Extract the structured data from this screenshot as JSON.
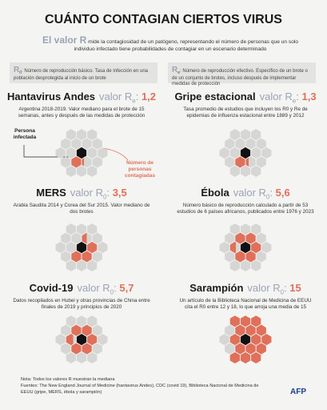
{
  "title": "CUÁNTO CONTAGIAN CIERTOS VIRUS",
  "intro": {
    "term": "El valor R",
    "text": "mide la contagiosidad de un patógeno, representando el número de personas que un solo individuo infectado tiene probabilidades de contagiar en un escenario determinado"
  },
  "separator": ":",
  "definitions": [
    {
      "symbol": "R",
      "sub": "0",
      "text": "Número de reproducción básico. Tasa de infección en una población desprotegida al inicio de un brote"
    },
    {
      "symbol": "R",
      "sub": "e",
      "text": "Número de reproducción efectivo. Específico de un brote o de un conjunto de brotes, incluso después de implementar medidas de protección"
    }
  ],
  "annotations": {
    "infected": "Persona infectada",
    "contagiados": "Número de personas contagiadas"
  },
  "chart_data": {
    "type": "hexagon-grid",
    "value_prefix": "valor R",
    "categories": [
      "Hantavirus Andes",
      "Gripe estacional",
      "MERS",
      "Ébola",
      "Covid-19",
      "Sarampión"
    ],
    "r_types": [
      "e",
      "e",
      "0",
      "0",
      "0",
      "0"
    ],
    "values": [
      1.2,
      1.3,
      3.5,
      5.6,
      5.7,
      15
    ],
    "value_labels": [
      "1,2",
      "1,3",
      "3,5",
      "5,6",
      "5,7",
      "15"
    ],
    "descriptions": [
      "Argentina 2018-2019. Valor mediano para el brote de 15 semanas, antes y después de las medidas de protección",
      "Tasa promedio de estudios que incluyen los R0 y Re de epidemias de influenza estacional entre 1889 y 2012",
      "Arabia Saudita 2014 y Corea del Sur 2015. Valor mediano de dos brotes",
      "Número básico de reproducción calculado a partir de 53 estudios de 6 países africanos, publicados entre 1976 y 2023",
      "Datos recopilados en Hubei y otras provincias de China entre finales de 2019 y principios de 2020",
      "Un artículo de la Biblioteca Nacional de Medicina de EEUU cita el R0 entre 12 y 18, lo que arroja una media de 15"
    ],
    "color": "#e0705a",
    "infected_color": "#111111",
    "empty_color": "#d6d6d4"
  },
  "footer": {
    "note": "Nota: Todos los valores R muestran la mediana",
    "sources": "Fuentes: The New England Journal of Medicine (hantavirus Andes), CDC (covid 19), Biblioteca Nacional de Medicina de EEUU (gripe, MERS, ébola y sarampión)",
    "logo": "AFP"
  }
}
